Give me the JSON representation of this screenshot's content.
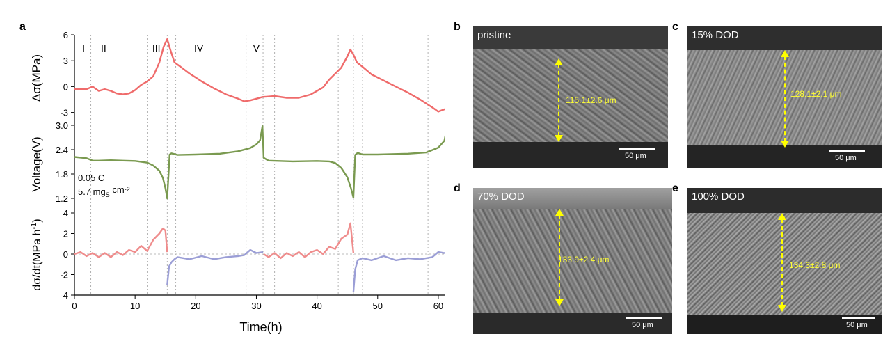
{
  "panel_labels": {
    "a": "a",
    "b": "b",
    "c": "c",
    "d": "d",
    "e": "e"
  },
  "chart_data": [
    {
      "type": "line",
      "panel": "a-top",
      "ylabel": "Δσ(MPa)",
      "ylim": [
        -4,
        6
      ],
      "yticks": [
        "6",
        "3",
        "0",
        "-3"
      ],
      "stage_labels": [
        {
          "text": "I",
          "x": 1.5
        },
        {
          "text": "II",
          "x": 4.8
        },
        {
          "text": "III",
          "x": 13.5
        },
        {
          "text": "IV",
          "x": 20.5
        },
        {
          "text": "V",
          "x": 30.0
        }
      ],
      "series": [
        {
          "color": "#ef6b6b",
          "x": [
            0,
            2,
            3,
            4,
            5,
            6,
            7,
            8,
            9,
            10,
            11,
            12,
            13,
            14,
            14.7,
            15.3,
            15.8,
            16.5,
            17.5,
            19,
            21,
            23,
            25,
            27,
            28,
            29,
            30,
            31,
            33,
            35,
            37,
            39,
            41,
            42,
            43,
            44,
            45,
            45.5,
            46,
            46.6,
            47.5,
            49,
            51,
            53,
            55,
            57,
            59,
            60,
            61.5
          ],
          "y": [
            -0.3,
            -0.3,
            0,
            -0.5,
            -0.3,
            -0.5,
            -0.8,
            -0.9,
            -0.8,
            -0.4,
            0.2,
            0.6,
            1.2,
            2.8,
            4.6,
            5.5,
            4.3,
            2.8,
            2.3,
            1.5,
            0.6,
            -0.2,
            -0.9,
            -1.4,
            -1.7,
            -1.6,
            -1.4,
            -1.2,
            -1.1,
            -1.3,
            -1.3,
            -0.9,
            -0.1,
            0.8,
            1.5,
            2.2,
            3.5,
            4.3,
            3.7,
            2.8,
            2.3,
            1.4,
            0.7,
            0,
            -0.7,
            -1.5,
            -2.4,
            -2.9,
            -2.5
          ]
        }
      ]
    },
    {
      "type": "line",
      "panel": "a-middle",
      "ylabel": "Voltage(V)",
      "ylim": [
        1.0,
        3.0
      ],
      "yticks": [
        "3.0",
        "2.4",
        "1.8",
        "1.2"
      ],
      "annotation_lines": [
        "0.05 C",
        "5.7 mg",
        "S",
        " cm",
        "-2"
      ],
      "series": [
        {
          "color": "#7a9a50",
          "x": [
            0,
            2,
            3,
            4,
            6,
            8,
            10,
            12,
            13,
            14,
            14.6,
            15.0,
            15.3,
            15.7,
            16,
            17,
            20,
            24,
            27,
            29,
            30,
            30.6,
            31,
            31.2,
            32,
            36,
            40,
            42,
            43,
            44,
            45,
            45.6,
            46.0,
            46.3,
            46.7,
            47.5,
            50,
            55,
            58,
            60,
            61,
            61.5
          ],
          "y": [
            2.22,
            2.19,
            2.13,
            2.13,
            2.14,
            2.13,
            2.12,
            2.08,
            2.01,
            1.88,
            1.7,
            1.45,
            1.2,
            2.28,
            2.31,
            2.27,
            2.28,
            2.3,
            2.36,
            2.44,
            2.53,
            2.63,
            2.98,
            2.2,
            2.13,
            2.11,
            2.12,
            2.11,
            2.07,
            1.95,
            1.72,
            1.45,
            1.22,
            2.27,
            2.32,
            2.28,
            2.28,
            2.3,
            2.33,
            2.45,
            2.62,
            2.98
          ]
        }
      ]
    },
    {
      "type": "line",
      "panel": "a-bottom",
      "ylabel": "dσ/dt(MPa h",
      "ylabel_sup": "-1",
      "ylabel_end": ")",
      "ylim": [
        -4,
        4
      ],
      "yticks": [
        "4",
        "2",
        "0",
        "-2",
        "-4"
      ],
      "xlabel": "Time(h)",
      "xlim": [
        0,
        61.5
      ],
      "xticks": [
        0,
        10,
        20,
        30,
        40,
        50,
        60
      ],
      "series": [
        {
          "color": "#ef8c8c",
          "x": [
            0,
            1,
            2,
            3,
            4,
            5,
            6,
            7,
            8,
            9,
            10,
            11,
            12,
            13,
            14,
            14.6,
            15.0,
            15.3
          ],
          "y": [
            0,
            0.2,
            -0.2,
            0.1,
            -0.3,
            0.1,
            -0.3,
            0.2,
            -0.1,
            0.4,
            0.2,
            0.8,
            0.3,
            1.4,
            2.0,
            2.5,
            2.3,
            0.2
          ]
        },
        {
          "color": "#9b9ed6",
          "x": [
            15.3,
            15.6,
            16,
            16.5,
            17,
            19,
            21,
            23,
            25,
            27,
            28,
            29,
            30,
            31.1
          ],
          "y": [
            -3,
            -1.2,
            -0.8,
            -0.5,
            -0.3,
            -0.5,
            -0.2,
            -0.5,
            -0.3,
            -0.2,
            -0.1,
            0.4,
            0.1,
            0.2
          ]
        },
        {
          "color": "#ef8c8c",
          "x": [
            31.2,
            32,
            33,
            34,
            35,
            36,
            37,
            38,
            39,
            40,
            41,
            42,
            43,
            44,
            45,
            45.5,
            46.0
          ],
          "y": [
            0,
            -0.3,
            0.1,
            -0.4,
            0.1,
            -0.2,
            0.2,
            -0.3,
            0.2,
            0.4,
            0.0,
            0.7,
            0.5,
            1.5,
            1.9,
            3.0,
            0.1
          ]
        },
        {
          "color": "#9b9ed6",
          "x": [
            46.0,
            46.3,
            46.7,
            47.5,
            49,
            51,
            53,
            55,
            57,
            59,
            60,
            61,
            61.5
          ],
          "y": [
            -3.7,
            -1.5,
            -0.6,
            -0.4,
            -0.6,
            -0.2,
            -0.6,
            -0.4,
            -0.5,
            -0.3,
            0.2,
            0.1,
            0.2
          ]
        }
      ]
    }
  ],
  "vlines_x": [
    2.7,
    12.0,
    15.3,
    16.7,
    28.3,
    31.1,
    33.0,
    43.5,
    46.0,
    47.5,
    58.3
  ],
  "sem_images": [
    {
      "id": "b",
      "condition": "pristine",
      "measure": "115.1±2.6 μm",
      "scale": "50 μm"
    },
    {
      "id": "c",
      "condition": "15% DOD",
      "measure": "128.1±2.1 μm",
      "scale": "50 μm"
    },
    {
      "id": "d",
      "condition": "70% DOD",
      "measure": "133.9±2.4 μm",
      "scale": "50 μm"
    },
    {
      "id": "e",
      "condition": "100% DOD",
      "measure": "134.3±2.8 μm",
      "scale": "50 μm"
    }
  ]
}
